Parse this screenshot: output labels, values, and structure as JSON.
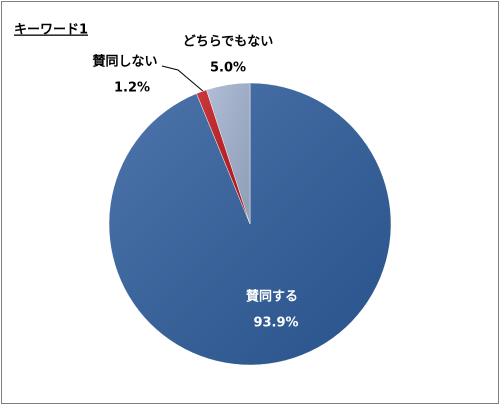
{
  "chart_data": {
    "type": "pie",
    "title": "キーワード1",
    "categories": [
      "賛同する",
      "賛同しない",
      "どちらでもない"
    ],
    "values": [
      93.9,
      1.2,
      5.0
    ],
    "value_labels": [
      "93.9%",
      "1.2%",
      "5.0%"
    ],
    "colors": [
      "#2f5e9e",
      "#c0161c",
      "#a3b3d0"
    ]
  }
}
